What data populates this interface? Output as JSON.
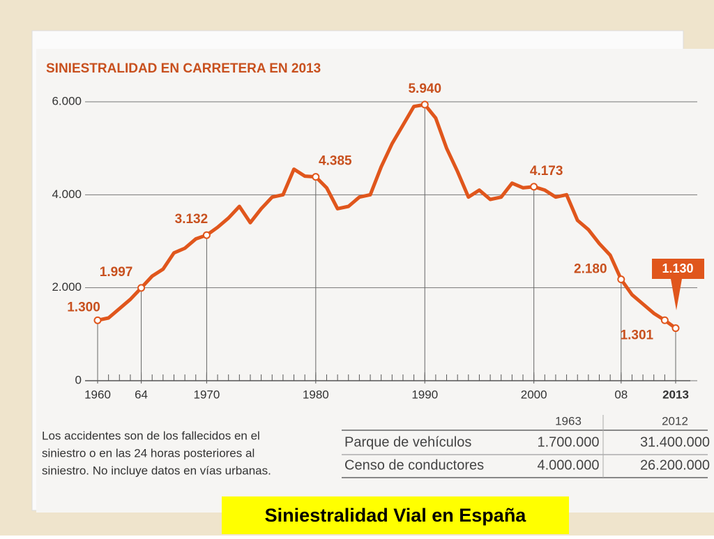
{
  "chart_data": {
    "type": "line",
    "title": "SINIESTRALIDAD EN CARRETERA EN 2013",
    "x": [
      1960,
      1961,
      1962,
      1963,
      1964,
      1965,
      1966,
      1967,
      1968,
      1969,
      1970,
      1971,
      1972,
      1973,
      1974,
      1975,
      1976,
      1977,
      1978,
      1979,
      1980,
      1981,
      1982,
      1983,
      1984,
      1985,
      1986,
      1987,
      1988,
      1989,
      1990,
      1991,
      1992,
      1993,
      1994,
      1995,
      1996,
      1997,
      1998,
      1999,
      2000,
      2001,
      2002,
      2003,
      2004,
      2005,
      2006,
      2007,
      2008,
      2009,
      2010,
      2011,
      2012,
      2013
    ],
    "series": [
      {
        "name": null,
        "color": "#e0561c",
        "values": [
          1300,
          1350,
          1550,
          1750,
          1997,
          2250,
          2400,
          2750,
          2850,
          3050,
          3132,
          3300,
          3500,
          3750,
          3400,
          3700,
          3950,
          4000,
          4550,
          4400,
          4385,
          4150,
          3700,
          3750,
          3950,
          4000,
          4600,
          5100,
          5500,
          5900,
          5940,
          5650,
          5000,
          4500,
          3950,
          4100,
          3900,
          3950,
          4250,
          4150,
          4173,
          4100,
          3950,
          4000,
          3450,
          3250,
          2950,
          2700,
          2180,
          1850,
          1650,
          1450,
          1301,
          1130
        ],
        "value_labels": [
          "1.300",
          null,
          null,
          null,
          "1.997",
          null,
          null,
          null,
          null,
          null,
          "3.132",
          null,
          null,
          null,
          null,
          null,
          null,
          null,
          null,
          null,
          "4.385",
          null,
          null,
          null,
          null,
          null,
          null,
          null,
          null,
          null,
          "5.940",
          null,
          null,
          null,
          null,
          null,
          null,
          null,
          null,
          null,
          "4.173",
          null,
          null,
          null,
          null,
          null,
          null,
          null,
          "2.180",
          null,
          null,
          null,
          "1.301",
          "1.130"
        ]
      }
    ],
    "xlim": [
      1960,
      2013
    ],
    "xticks": [
      1960,
      {
        "value": 1964,
        "label": "64"
      },
      1970,
      1980,
      1990,
      2000,
      {
        "value": 2008,
        "label": "08"
      },
      2013
    ],
    "ylim": [
      0,
      6000
    ],
    "yticks": [
      0,
      {
        "value": 2000,
        "label": "2.000"
      },
      {
        "value": 4000,
        "label": "4.000"
      },
      {
        "value": 6000,
        "label": "6.000"
      }
    ],
    "grid": true
  },
  "note": [
    "Los accidentes son de los fallecidos en el",
    "siniestro o en las 24 horas posteriores al",
    "siniestro. No incluye datos en vías urbanas."
  ],
  "table": {
    "columns": [
      "1963",
      "2012"
    ],
    "rows": [
      [
        "Parque de vehículos",
        "1.700.000",
        "31.400.000"
      ],
      [
        "Censo de conductores",
        "4.000.000",
        "26.200.000"
      ]
    ]
  },
  "caption": "Siniestralidad Vial en España"
}
